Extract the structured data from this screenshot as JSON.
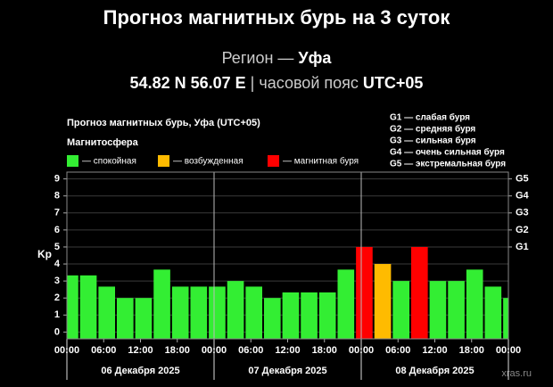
{
  "header": {
    "title": "Прогноз магнитных бурь на 3 суток",
    "region_label": "Регион —",
    "region": "Уфа",
    "coords": "54.82 N 56.07 E",
    "tz_label": "| часовой пояс",
    "tz": "UTC+05"
  },
  "chart_data": {
    "type": "bar",
    "title": "Прогноз магнитных бурь, Уфа (UTC+05)",
    "y_label": "Kp",
    "legend_title": "Магнитосфера",
    "legend": [
      {
        "label": "— спокойная",
        "color": "#33ee33"
      },
      {
        "label": "— возбужденная",
        "color": "#ffbb00"
      },
      {
        "label": "— магнитная буря",
        "color": "#ff0000"
      }
    ],
    "scale_notes": [
      "G1 — слабая буря",
      "G2 — средняя буря",
      "G3 — сильная буря",
      "G4 — очень сильная буря",
      "G5 — экстремальная буря"
    ],
    "values": [
      3.33,
      3.33,
      2.67,
      2,
      2,
      3.67,
      2.67,
      2.67,
      2.67,
      3,
      2.67,
      2,
      2.33,
      2.33,
      2.33,
      3.67,
      5,
      4,
      3,
      5,
      3,
      3,
      3.67,
      2.67,
      2
    ],
    "colors": [
      "#33ee33",
      "#33ee33",
      "#33ee33",
      "#33ee33",
      "#33ee33",
      "#33ee33",
      "#33ee33",
      "#33ee33",
      "#33ee33",
      "#33ee33",
      "#33ee33",
      "#33ee33",
      "#33ee33",
      "#33ee33",
      "#33ee33",
      "#33ee33",
      "#ff0000",
      "#ffbb00",
      "#33ee33",
      "#ff0000",
      "#33ee33",
      "#33ee33",
      "#33ee33",
      "#33ee33",
      "#33ee33"
    ],
    "ylim": [
      -0.4,
      9.4
    ],
    "yticks": [
      0,
      1,
      2,
      3,
      4,
      5,
      6,
      7,
      8,
      9
    ],
    "y2ticks": [
      {
        "value": 5,
        "label": "G1"
      },
      {
        "value": 6,
        "label": "G2"
      },
      {
        "value": 7,
        "label": "G3"
      },
      {
        "value": 8,
        "label": "G4"
      },
      {
        "value": 9,
        "label": "G5"
      }
    ],
    "xlim": [
      0,
      72
    ],
    "xticks": [
      {
        "value": 0,
        "label": "00:00"
      },
      {
        "value": 6,
        "label": "06:00"
      },
      {
        "value": 12,
        "label": "12:00"
      },
      {
        "value": 18,
        "label": "18:00"
      },
      {
        "value": 24,
        "label": "00:00"
      },
      {
        "value": 30,
        "label": "06:00"
      },
      {
        "value": 36,
        "label": "12:00"
      },
      {
        "value": 42,
        "label": "18:00"
      },
      {
        "value": 48,
        "label": "00:00"
      },
      {
        "value": 54,
        "label": "06:00"
      },
      {
        "value": 60,
        "label": "12:00"
      },
      {
        "value": 66,
        "label": "18:00"
      },
      {
        "value": 72,
        "label": "00:00"
      }
    ],
    "days": [
      "06 Декабря 2025",
      "07 Декабря 2025",
      "08 Декабря 2025"
    ],
    "grid": true,
    "watermark": "xras.ru"
  }
}
